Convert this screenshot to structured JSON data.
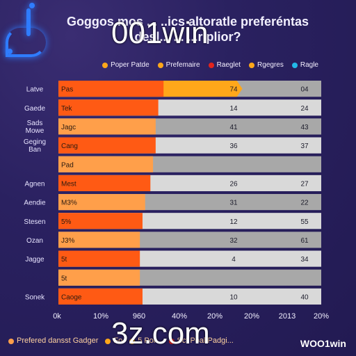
{
  "header": {
    "title_line1": "Goggos mos ... ..ics altoratle preferéntas",
    "title_line2": "desl... ... ...rlplior?",
    "overlay_brand": "001win"
  },
  "colors": {
    "orange": "#ff5a14",
    "light_orange": "#ff9f4a",
    "amber": "#ffa71a",
    "grey": "#a8a8a8",
    "light_grey": "#d9d9d9",
    "red": "#e2241c",
    "cyan": "#22b8e8"
  },
  "legend": [
    {
      "label": "Poper Patde",
      "color": "#ffa71a"
    },
    {
      "label": "Prefemaire",
      "color": "#ffa71a"
    },
    {
      "label": "Raeglet",
      "color": "#e2241c"
    },
    {
      "label": "Rgegres",
      "color": "#ffa71a"
    },
    {
      "label": "Ragle",
      "color": "#22b8e8"
    }
  ],
  "chart_data": {
    "type": "bar",
    "orientation": "horizontal",
    "title": "Goggos mos ... ..ics altoratle preferéntas desl... ... ...rlplior?",
    "x_tick_labels": [
      "0k",
      "10%",
      "960",
      "40%",
      "20%",
      "20%",
      "2013",
      "20%"
    ],
    "rows": [
      {
        "category": "Latve",
        "bar_label": "Pas",
        "value": 0.4,
        "amber_value": 0.7,
        "right_value_1": "74",
        "right_value_2": "04",
        "bar_color": "orange"
      },
      {
        "category": "Gaede",
        "bar_label": "Tek",
        "value": 0.38,
        "right_value_1": "14",
        "right_value_2": "24",
        "bar_color": "orange"
      },
      {
        "category": "Sads Mowe",
        "bar_label": "Jagc",
        "value": 0.37,
        "right_value_1": "41",
        "right_value_2": "43",
        "bar_color": "light_orange"
      },
      {
        "category": "Geging Ban",
        "bar_label": "Cang",
        "value": 0.37,
        "right_value_1": "36",
        "right_value_2": "37",
        "bar_color": "orange"
      },
      {
        "category": "",
        "bar_label": "Pad",
        "value": 0.36,
        "right_value_1": "",
        "right_value_2": "",
        "bar_color": "light_orange"
      },
      {
        "category": "Agnen",
        "bar_label": "Mest",
        "value": 0.35,
        "right_value_1": "26",
        "right_value_2": "27",
        "bar_color": "orange"
      },
      {
        "category": "Aendie",
        "bar_label": "M3%",
        "value": 0.33,
        "right_value_1": "31",
        "right_value_2": "22",
        "bar_color": "light_orange"
      },
      {
        "category": "Stesen",
        "bar_label": "5%",
        "value": 0.32,
        "right_value_1": "12",
        "right_value_2": "55",
        "bar_color": "orange"
      },
      {
        "category": "Ozan",
        "bar_label": "J3%",
        "value": 0.31,
        "right_value_1": "32",
        "right_value_2": "61",
        "bar_color": "light_orange"
      },
      {
        "category": "Jagge",
        "bar_label": "5t",
        "value": 0.31,
        "right_value_1": "4",
        "right_value_2": "34",
        "bar_color": "orange"
      },
      {
        "category": "",
        "bar_label": "5t",
        "value": 0.31,
        "right_value_1": "",
        "right_value_2": "",
        "bar_color": "light_orange"
      },
      {
        "category": "Sonek",
        "bar_label": "Caoge",
        "value": 0.32,
        "right_value_1": "10",
        "right_value_2": "40",
        "bar_color": "orange"
      }
    ]
  },
  "footer": {
    "legend": [
      {
        "label": "Prefered dansst Gadger",
        "color": "#ff9f4a"
      },
      {
        "label": "Fo",
        "color": "#ffa71a"
      },
      {
        "label": "5 Poi...",
        "color": "#ffa71a"
      },
      {
        "label": "Sct Poal Padgi...",
        "color": "#e2241c"
      }
    ],
    "overlay_brand": "3z.com",
    "logo": "WOO1win"
  }
}
